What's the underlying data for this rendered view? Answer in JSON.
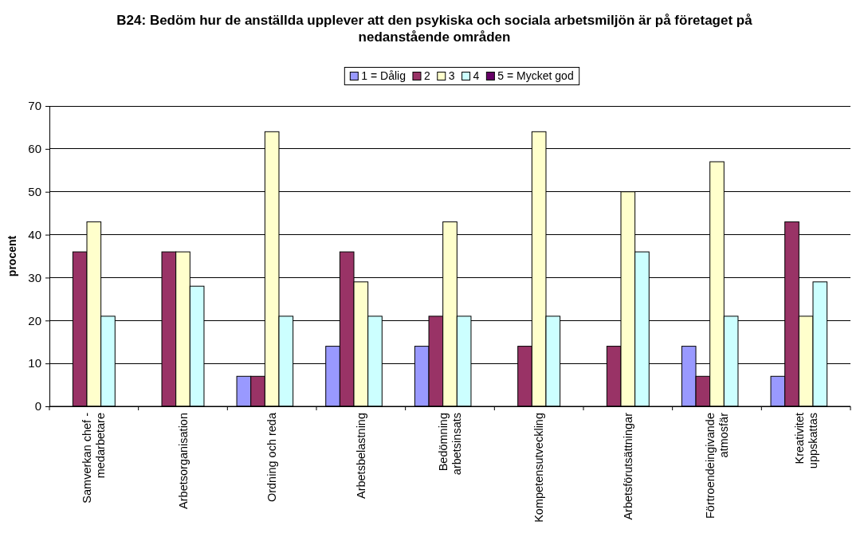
{
  "chart_data": {
    "type": "bar",
    "title": "B24: Bedöm hur de anställda upplever att den psykiska och sociala arbetsmiljön är på företaget på nedanstående områden",
    "ylabel": "procent",
    "categories": [
      "Samverkan chef -\nmedarbetare",
      "Arbetsorganisation",
      "Ordning och reda",
      "Arbetsbelastning",
      "Bedömning\narbetsinsats",
      "Kompetensutveckling",
      "Arbetsförutsättningar",
      "Förtroendeingivande\natmosfär",
      "Kreativitet\nuppskattas"
    ],
    "series": [
      {
        "name": "1 = Dålig",
        "color": "#9999ff",
        "values": [
          0,
          0,
          7,
          14,
          14,
          0,
          0,
          14,
          7
        ]
      },
      {
        "name": "2",
        "color": "#993366",
        "values": [
          36,
          36,
          7,
          36,
          21,
          14,
          14,
          7,
          43
        ]
      },
      {
        "name": "3",
        "color": "#ffffcc",
        "values": [
          43,
          36,
          64,
          29,
          43,
          64,
          50,
          57,
          21
        ]
      },
      {
        "name": "4",
        "color": "#ccffff",
        "values": [
          21,
          28,
          21,
          21,
          21,
          21,
          36,
          21,
          29
        ]
      },
      {
        "name": "5 = Mycket god",
        "color": "#660066",
        "values": [
          0,
          0,
          0,
          0,
          0,
          0,
          0,
          0,
          0
        ]
      }
    ],
    "ylim": [
      0,
      70
    ],
    "yticks": [
      0,
      10,
      20,
      30,
      40,
      50,
      60,
      70
    ],
    "grid": "y",
    "legend": "top"
  }
}
